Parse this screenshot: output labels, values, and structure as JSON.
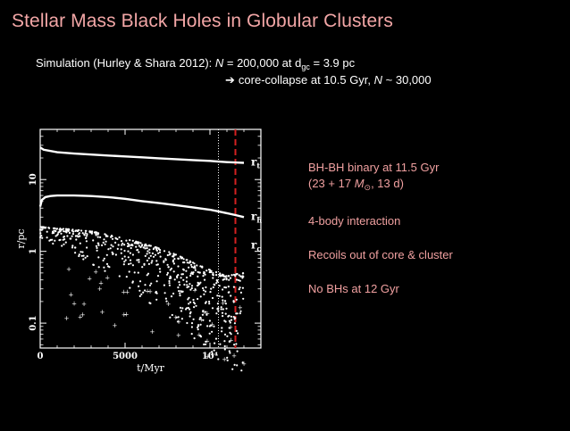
{
  "slide": {
    "title": "Stellar Mass Black Holes in Globular Clusters",
    "sim_prefix": "Simulation (Hurley & Shara 2012): ",
    "sim_N": "N",
    "sim_eq": " = 200,000 at d",
    "sim_sub": "gc",
    "sim_rest": " = 3.9 pc",
    "arrow_glyph": "➔",
    "cc_text": "core-collapse at 10.5 Gyr, ",
    "cc_N": "N",
    "cc_rest": " ~ 30,000"
  },
  "bullets": {
    "b1_line1": "BH-BH binary at 11.5 Gyr",
    "b1_line2_a": "(23 + 17 ",
    "b1_line2_M": "M",
    "b1_line2_sun": "⊙",
    "b1_line2_b": ", 13 d)",
    "b2": "4-body interaction",
    "b3": "Recoils out of core & cluster",
    "b4": "No BHs at 12 Gyr"
  },
  "colors": {
    "title": "#f2a6a6",
    "bullets": "#f0a0a0",
    "marker_line": "#d42020",
    "curves": "#ffffff",
    "background": "#000000"
  },
  "chart_data": {
    "type": "scatter",
    "xlabel": "t/Myr",
    "ylabel": "r/pc",
    "x_ticks": [
      {
        "value": 0,
        "label": "0"
      },
      {
        "value": 5000,
        "label": "5000"
      },
      {
        "value": 10000,
        "label": "10⁴"
      }
    ],
    "y_ticks": [
      {
        "value": 0.1,
        "label": "0.1"
      },
      {
        "value": 1,
        "label": "1"
      },
      {
        "value": 10,
        "label": "10"
      }
    ],
    "xlim": [
      0,
      13000
    ],
    "ylim": [
      0.045,
      50
    ],
    "y_scale": "log",
    "series": [
      {
        "name": "r_t",
        "label_main": "r",
        "label_sub": "t",
        "x": [
          0,
          200,
          1000,
          2000,
          3000,
          4000,
          5000,
          6000,
          7000,
          8000,
          9000,
          10000,
          10500,
          11000,
          11500,
          12000
        ],
        "y": [
          28,
          26,
          24,
          23,
          22.3,
          21.6,
          21,
          20.4,
          19.8,
          19.2,
          18.7,
          18.2,
          17.8,
          17.5,
          17.3,
          17.1
        ]
      },
      {
        "name": "r_h",
        "label_main": "r",
        "label_sub": "h",
        "x": [
          0,
          100,
          300,
          600,
          1000,
          2000,
          3000,
          4000,
          5000,
          6000,
          7000,
          8000,
          9000,
          10000,
          10500,
          11000,
          11500,
          12000
        ],
        "y": [
          4.2,
          5.2,
          5.7,
          5.9,
          6.0,
          6.0,
          5.9,
          5.7,
          5.4,
          5.0,
          4.7,
          4.4,
          4.1,
          3.8,
          3.6,
          3.4,
          3.2,
          3.0
        ]
      },
      {
        "name": "r_c",
        "label_main": "r",
        "label_sub": "c",
        "style": "scatter",
        "envelope_x": [
          0,
          1000,
          2000,
          3000,
          4000,
          5000,
          6000,
          7000,
          8000,
          9000,
          10000,
          10500,
          11000,
          11500,
          12000
        ],
        "envelope_y": [
          2.2,
          2.1,
          2.0,
          1.9,
          1.7,
          1.5,
          1.3,
          1.1,
          0.9,
          0.7,
          0.55,
          0.5,
          0.45,
          0.48,
          0.5
        ]
      }
    ],
    "vlines": [
      {
        "x": 10500,
        "style": "dotted",
        "color": "#ffffff"
      },
      {
        "x": 11500,
        "style": "dashed",
        "color": "#d42020"
      }
    ],
    "grid": false
  }
}
